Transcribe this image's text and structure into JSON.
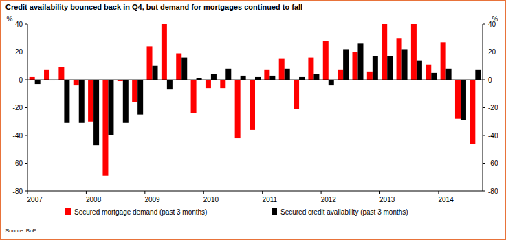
{
  "chart_data": {
    "type": "bar",
    "title": "Credit availability bounced back in Q4, but demand for mortgages continued to fall",
    "y_label": "%",
    "y2_label": "%",
    "source": "Source: BoE",
    "categories": [
      "2007",
      null,
      null,
      null,
      "2008",
      null,
      null,
      null,
      "2009",
      null,
      null,
      null,
      "2010",
      null,
      null,
      null,
      "2011",
      null,
      null,
      null,
      "2012",
      null,
      null,
      null,
      "2013",
      null,
      null,
      null,
      "2014",
      null,
      null
    ],
    "series": [
      {
        "name": "Secured mortgage demand (past 3 months)",
        "color": "#ff0000",
        "values": [
          2,
          7,
          9,
          -4,
          -30,
          -69,
          -1,
          -16,
          24,
          40,
          19,
          -24,
          -6,
          -6,
          -42,
          -36,
          7,
          15,
          -21,
          16,
          28,
          7,
          20,
          6,
          40,
          30,
          40,
          11,
          27,
          -28,
          -46
        ]
      },
      {
        "name": "Secured credit avaliability (past 3 months)",
        "color": "#000000",
        "values": [
          -3,
          -0.5,
          -31,
          -31,
          -47,
          -40,
          -31,
          -25,
          10,
          -7,
          16,
          1,
          4,
          8,
          3,
          2,
          3,
          8,
          2,
          4,
          -4,
          22,
          26,
          17,
          17,
          22,
          14,
          5,
          8,
          -29,
          7
        ]
      }
    ],
    "ylim": [
      -80,
      40
    ],
    "yticks": [
      -80,
      -60,
      -40,
      -20,
      0,
      20,
      40
    ],
    "y2lim": [
      -80,
      40
    ],
    "y2ticks": [
      -80,
      -60,
      -40,
      -20,
      0,
      20,
      40
    ],
    "grid": false,
    "legend": "bottom"
  }
}
